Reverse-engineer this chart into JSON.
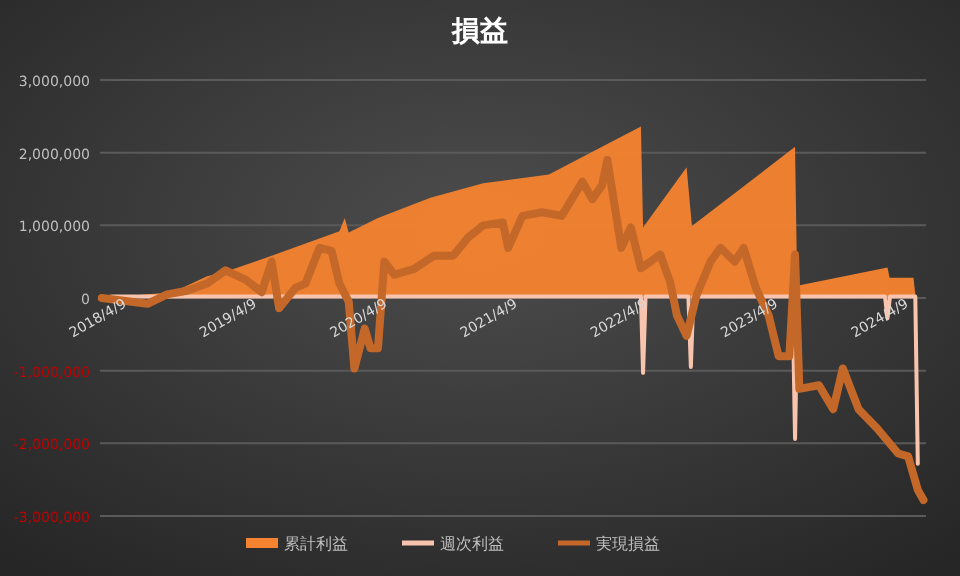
{
  "chart_data": {
    "type": "line",
    "title": "損益",
    "xlim": [
      "2018-04-09",
      "2024-08-10"
    ],
    "xticks": [
      {
        "value": "2018-04-09",
        "label": "2018/4/9"
      },
      {
        "value": "2019-04-09",
        "label": "2019/4/9"
      },
      {
        "value": "2020-04-09",
        "label": "2020/4/9"
      },
      {
        "value": "2021-04-09",
        "label": "2021/4/9"
      },
      {
        "value": "2022-04-09",
        "label": "2022/4/9"
      },
      {
        "value": "2023-04-09",
        "label": "2023/4/9"
      },
      {
        "value": "2024-04-09",
        "label": "2024/4/9"
      }
    ],
    "ylim": [
      -3000000,
      3000000
    ],
    "yticks": [
      {
        "value": -3000000,
        "label": "-3,000,000"
      },
      {
        "value": -2000000,
        "label": "-2,000,000"
      },
      {
        "value": -1000000,
        "label": "-1,000,000"
      },
      {
        "value": 0,
        "label": "0"
      },
      {
        "value": 1000000,
        "label": "1,000,000"
      },
      {
        "value": 2000000,
        "label": "2,000,000"
      },
      {
        "value": 3000000,
        "label": "3,000,000"
      }
    ],
    "grid": "y",
    "legend": "bottom",
    "series": [
      {
        "name": "累計利益",
        "type": "area",
        "color": "#f5832f",
        "x": [
          "2018-04-14",
          "2018-10-30",
          "2019-02-03",
          "2019-03-27",
          "2019-08-03",
          "2020-02-09",
          "2020-02-24",
          "2020-03-06",
          "2020-05-27",
          "2020-10-21",
          "2021-03-18",
          "2021-09-18",
          "2022-02-14",
          "2022-06-03",
          "2022-06-09",
          "2022-10-09",
          "2022-10-24",
          "2023-08-09",
          "2023-08-15",
          "2024-04-24",
          "2024-04-30",
          "2024-07-06",
          "2024-07-12"
        ],
        "values": [
          0,
          80000,
          300000,
          360000,
          580000,
          920000,
          1100000,
          900000,
          1100000,
          1380000,
          1580000,
          1700000,
          2080000,
          2360000,
          970000,
          1800000,
          990000,
          2080000,
          170000,
          420000,
          280000,
          280000,
          0
        ]
      },
      {
        "name": "週次利益",
        "color": "#f9c4ad",
        "x": [
          "2018-04-14",
          "2018-05-14",
          "2022-06-03",
          "2022-06-09",
          "2022-06-16",
          "2022-10-14",
          "2022-10-21",
          "2022-10-28",
          "2023-08-02",
          "2023-08-09",
          "2023-08-16",
          "2024-04-17",
          "2024-04-24",
          "2024-05-01",
          "2024-07-11",
          "2024-07-18"
        ],
        "values": [
          0,
          20000,
          20000,
          -1030000,
          20000,
          20000,
          -950000,
          20000,
          20000,
          -1940000,
          20000,
          20000,
          -280000,
          20000,
          20000,
          -2280000
        ]
      },
      {
        "name": "実現損益",
        "color": "#c4682a",
        "x": [
          "2018-04-14",
          "2018-08-20",
          "2018-10-14",
          "2018-12-09",
          "2019-02-03",
          "2019-03-27",
          "2019-05-23",
          "2019-07-06",
          "2019-08-03",
          "2019-08-24",
          "2019-10-09",
          "2019-11-06",
          "2019-12-15",
          "2020-01-18",
          "2020-02-09",
          "2020-03-06",
          "2020-03-22",
          "2020-04-20",
          "2020-05-06",
          "2020-05-27",
          "2020-06-14",
          "2020-07-12",
          "2020-09-06",
          "2020-10-30",
          "2020-12-24",
          "2021-02-03",
          "2021-03-18",
          "2021-05-12",
          "2021-05-27",
          "2021-07-06",
          "2021-08-30",
          "2021-10-24",
          "2021-12-21",
          "2022-01-18",
          "2022-02-14",
          "2022-03-01",
          "2022-04-09",
          "2022-05-06",
          "2022-06-03",
          "2022-06-30",
          "2022-07-27",
          "2022-08-24",
          "2022-09-12",
          "2022-10-09",
          "2022-11-06",
          "2022-12-15",
          "2023-01-12",
          "2023-02-21",
          "2023-03-18",
          "2023-04-21",
          "2023-05-27",
          "2023-06-24",
          "2023-07-24",
          "2023-08-09",
          "2023-08-21",
          "2023-10-15",
          "2023-11-24",
          "2023-12-21",
          "2024-02-03",
          "2024-03-27",
          "2024-05-24",
          "2024-06-21",
          "2024-07-18",
          "2024-08-03"
        ],
        "values": [
          0,
          -80000,
          50000,
          100000,
          200000,
          380000,
          250000,
          80000,
          500000,
          -140000,
          140000,
          200000,
          690000,
          650000,
          200000,
          -50000,
          -970000,
          -420000,
          -690000,
          -690000,
          500000,
          320000,
          400000,
          580000,
          580000,
          830000,
          1000000,
          1040000,
          690000,
          1130000,
          1180000,
          1130000,
          1600000,
          1360000,
          1550000,
          1900000,
          690000,
          970000,
          410000,
          500000,
          600000,
          220000,
          -240000,
          -520000,
          40000,
          500000,
          690000,
          500000,
          690000,
          140000,
          -240000,
          -800000,
          -800000,
          600000,
          -1250000,
          -1200000,
          -1530000,
          -970000,
          -1530000,
          -1800000,
          -2140000,
          -2180000,
          -2640000,
          -2780000
        ]
      }
    ]
  }
}
